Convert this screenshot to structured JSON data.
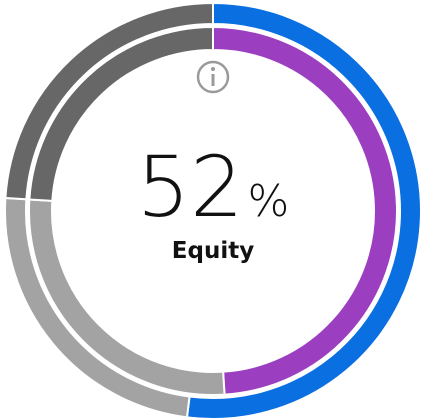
{
  "chart_data": {
    "type": "donut",
    "center_value": 52,
    "center_unit": "%",
    "center_label": "Equity",
    "series": [
      {
        "values": [
          52,
          24,
          24
        ],
        "colors": [
          "#0a6fe0",
          "#a3a3a3",
          "#676767"
        ]
      },
      {
        "values": [
          49,
          27,
          24
        ],
        "colors": [
          "#9b3fc0",
          "#a3a3a3",
          "#676767"
        ]
      }
    ]
  }
}
